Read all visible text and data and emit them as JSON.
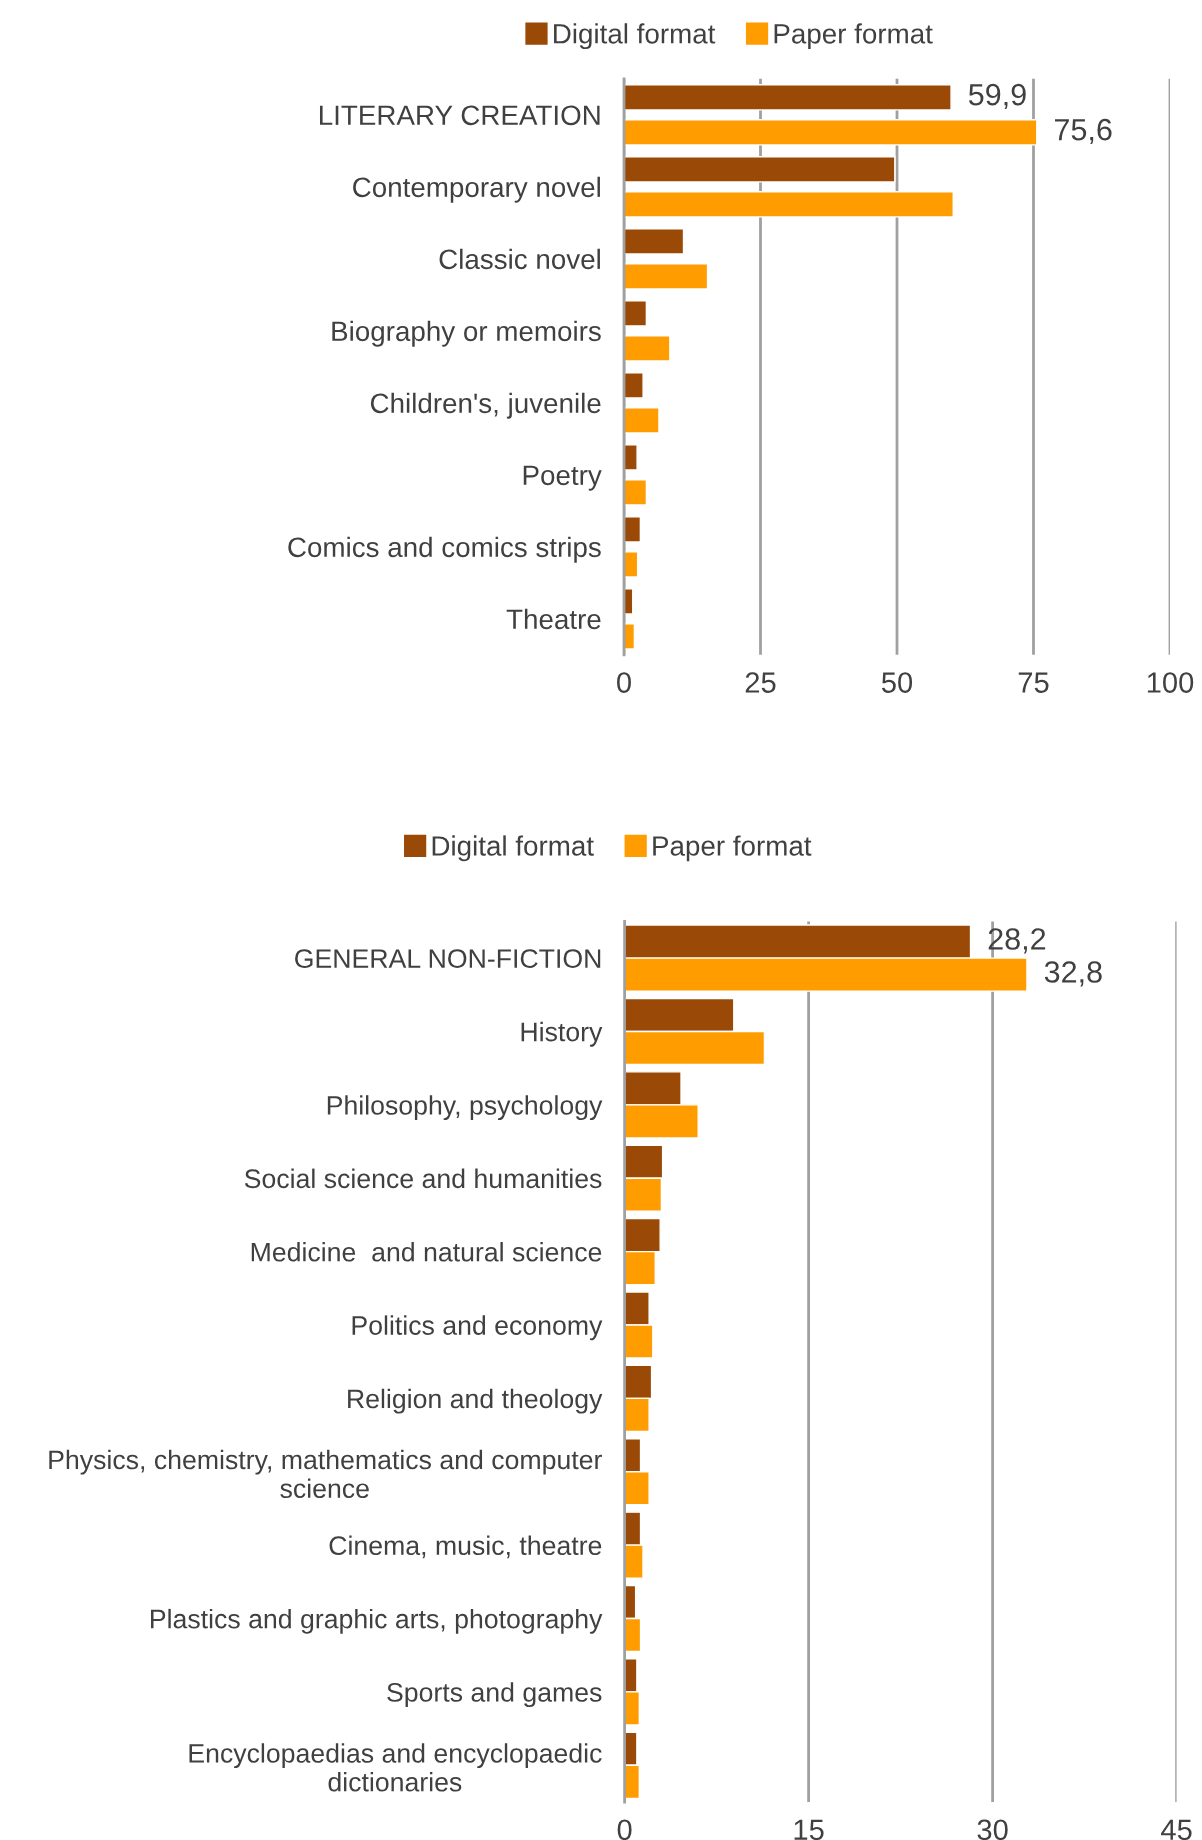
{
  "chart_data": [
    {
      "type": "bar",
      "orientation": "horizontal",
      "categories": [
        "LITERARY CREATION",
        "Contemporary novel",
        "Classic novel",
        "Biography or memoirs",
        "Children's, juvenile",
        "Poetry",
        "Comics and comics strips",
        "Theatre"
      ],
      "series": [
        {
          "name": "Digital format",
          "color": "#9a4a06",
          "values": [
            59.9,
            49.6,
            10.9,
            4.1,
            3.5,
            2.4,
            3.0,
            1.6
          ],
          "value_labels": [
            "59,9",
            null,
            null,
            null,
            null,
            null,
            null,
            null
          ]
        },
        {
          "name": "Paper format",
          "color": "#ff9c00",
          "values": [
            75.6,
            60.3,
            15.3,
            8.4,
            6.4,
            4.1,
            2.5,
            1.9
          ],
          "value_labels": [
            "75,6",
            null,
            null,
            null,
            null,
            null,
            null,
            null
          ]
        }
      ],
      "xlim": [
        0,
        100
      ],
      "xticks": [
        0,
        25,
        50,
        75,
        100
      ],
      "grid": "x",
      "legend": "top"
    },
    {
      "type": "bar",
      "orientation": "horizontal",
      "categories": [
        "GENERAL NON-FICTION",
        "History",
        "Philosophy, psychology",
        "Social science and humanities",
        "Medicine  and natural science",
        "Politics and economy",
        "Religion and theology",
        "Physics, chemistry, mathematics and computer\nscience",
        "Cinema, music, theatre",
        "Plastics and graphic arts, photography",
        "Sports and games",
        "Encyclopaedias and encyclopaedic\ndictionaries"
      ],
      "series": [
        {
          "name": "Digital format",
          "color": "#9a4a06",
          "values": [
            28.2,
            8.9,
            4.6,
            3.1,
            2.9,
            2.0,
            2.2,
            1.3,
            1.3,
            0.9,
            1.0,
            1.0
          ],
          "value_labels": [
            "28,2",
            null,
            null,
            null,
            null,
            null,
            null,
            null,
            null,
            null,
            null,
            null
          ]
        },
        {
          "name": "Paper format",
          "color": "#ff9c00",
          "values": [
            32.8,
            11.4,
            6.0,
            3.0,
            2.5,
            2.3,
            2.0,
            2.0,
            1.5,
            1.3,
            1.2,
            1.2
          ],
          "value_labels": [
            "32,8",
            null,
            null,
            null,
            null,
            null,
            null,
            null,
            null,
            null,
            null,
            null
          ]
        }
      ],
      "xlim": [
        0,
        45
      ],
      "xticks": [
        0,
        15,
        30,
        45
      ],
      "grid": "x",
      "legend": "top"
    }
  ]
}
